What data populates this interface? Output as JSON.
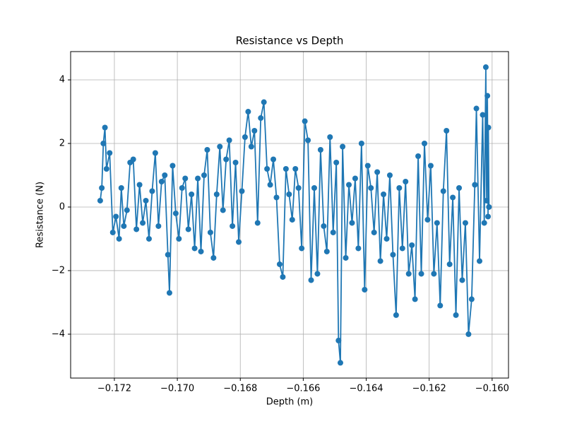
{
  "chart_data": {
    "type": "line",
    "title": "Resistance vs Depth",
    "x_label": "Depth (m)",
    "y_label": "Resistance (N)",
    "grid": true,
    "xlim": [
      -0.17339,
      -0.15948
    ],
    "ylim": [
      -5.38,
      4.89
    ],
    "xticks": [
      {
        "value": -0.172,
        "label": "−0.172"
      },
      {
        "value": -0.17,
        "label": "−0.170"
      },
      {
        "value": -0.168,
        "label": "−0.168"
      },
      {
        "value": -0.166,
        "label": "−0.166"
      },
      {
        "value": -0.164,
        "label": "−0.164"
      },
      {
        "value": -0.162,
        "label": "−0.162"
      },
      {
        "value": -0.16,
        "label": "−0.160"
      }
    ],
    "yticks": [
      {
        "value": -4,
        "label": "−4"
      },
      {
        "value": -2,
        "label": "−2"
      },
      0,
      2,
      4
    ],
    "x": [
      -0.17245,
      -0.1724,
      -0.17235,
      -0.1723,
      -0.17225,
      -0.17215,
      -0.17205,
      -0.17195,
      -0.17185,
      -0.17178,
      -0.1717,
      -0.1716,
      -0.1715,
      -0.1714,
      -0.1713,
      -0.1712,
      -0.1711,
      -0.171,
      -0.1709,
      -0.1708,
      -0.1707,
      -0.1706,
      -0.1705,
      -0.1704,
      -0.1703,
      -0.17025,
      -0.17015,
      -0.17005,
      -0.16995,
      -0.16985,
      -0.16975,
      -0.16965,
      -0.16955,
      -0.16945,
      -0.16935,
      -0.16925,
      -0.16915,
      -0.16905,
      -0.16895,
      -0.16885,
      -0.16875,
      -0.16865,
      -0.16855,
      -0.16845,
      -0.16835,
      -0.16825,
      -0.16815,
      -0.16805,
      -0.16795,
      -0.16785,
      -0.16775,
      -0.16765,
      -0.16755,
      -0.16745,
      -0.16735,
      -0.16725,
      -0.16715,
      -0.16705,
      -0.16695,
      -0.16685,
      -0.16675,
      -0.16665,
      -0.16655,
      -0.16645,
      -0.16635,
      -0.16625,
      -0.16615,
      -0.16605,
      -0.16595,
      -0.16585,
      -0.16575,
      -0.16565,
      -0.16555,
      -0.16545,
      -0.16535,
      -0.16525,
      -0.16515,
      -0.16505,
      -0.16495,
      -0.16488,
      -0.16482,
      -0.16475,
      -0.16465,
      -0.16455,
      -0.16445,
      -0.16435,
      -0.16425,
      -0.16415,
      -0.16405,
      -0.16395,
      -0.16385,
      -0.16375,
      -0.16365,
      -0.16355,
      -0.16345,
      -0.16335,
      -0.16325,
      -0.16315,
      -0.16305,
      -0.16295,
      -0.16285,
      -0.16275,
      -0.16265,
      -0.16255,
      -0.16245,
      -0.16235,
      -0.16225,
      -0.16215,
      -0.16205,
      -0.16195,
      -0.16185,
      -0.16175,
      -0.16165,
      -0.16155,
      -0.16145,
      -0.16135,
      -0.16125,
      -0.16115,
      -0.16105,
      -0.16095,
      -0.16085,
      -0.16075,
      -0.16065,
      -0.16055,
      -0.1605,
      -0.1604,
      -0.1603,
      -0.16025,
      -0.1602,
      -0.16018,
      -0.16015,
      -0.16013,
      -0.16012,
      -0.1601
    ],
    "series": [
      {
        "name": "Resistance",
        "color": "#1f77b4",
        "values": [
          0.2,
          0.6,
          2.0,
          2.5,
          1.2,
          1.7,
          -0.8,
          -0.3,
          -1.0,
          0.6,
          -0.6,
          -0.1,
          1.4,
          1.5,
          -0.7,
          0.7,
          -0.5,
          0.2,
          -1.0,
          0.5,
          1.7,
          -0.6,
          0.8,
          1.0,
          -1.5,
          -2.7,
          1.3,
          -0.2,
          -1.0,
          0.6,
          0.9,
          -0.7,
          0.4,
          -1.3,
          0.9,
          -1.4,
          1.0,
          1.8,
          -0.8,
          -1.6,
          0.4,
          1.9,
          -0.1,
          1.5,
          2.1,
          -0.6,
          1.4,
          -1.1,
          0.5,
          2.2,
          3.0,
          1.9,
          2.4,
          -0.5,
          2.8,
          3.3,
          1.2,
          0.7,
          1.5,
          0.3,
          -1.8,
          -2.2,
          1.2,
          0.4,
          -0.4,
          1.2,
          0.6,
          -1.3,
          2.7,
          2.1,
          -2.3,
          0.6,
          -2.1,
          1.8,
          -0.6,
          -1.4,
          2.2,
          -0.8,
          1.4,
          -4.2,
          -4.9,
          1.9,
          -1.6,
          0.7,
          -0.5,
          0.9,
          -1.3,
          2.0,
          -2.6,
          1.3,
          0.6,
          -0.8,
          1.1,
          -1.7,
          0.4,
          -1.0,
          1.0,
          -1.5,
          -3.4,
          0.6,
          -1.3,
          0.8,
          -2.1,
          -1.2,
          -2.9,
          1.6,
          -2.1,
          2.0,
          -0.4,
          1.3,
          -2.1,
          -0.5,
          -3.1,
          0.5,
          2.4,
          -1.8,
          0.3,
          -3.4,
          0.6,
          -2.3,
          -0.5,
          -4.0,
          -2.9,
          0.7,
          3.1,
          -1.7,
          2.9,
          -0.5,
          4.4,
          0.2,
          3.5,
          -0.3,
          2.5,
          0.0
        ]
      }
    ]
  }
}
